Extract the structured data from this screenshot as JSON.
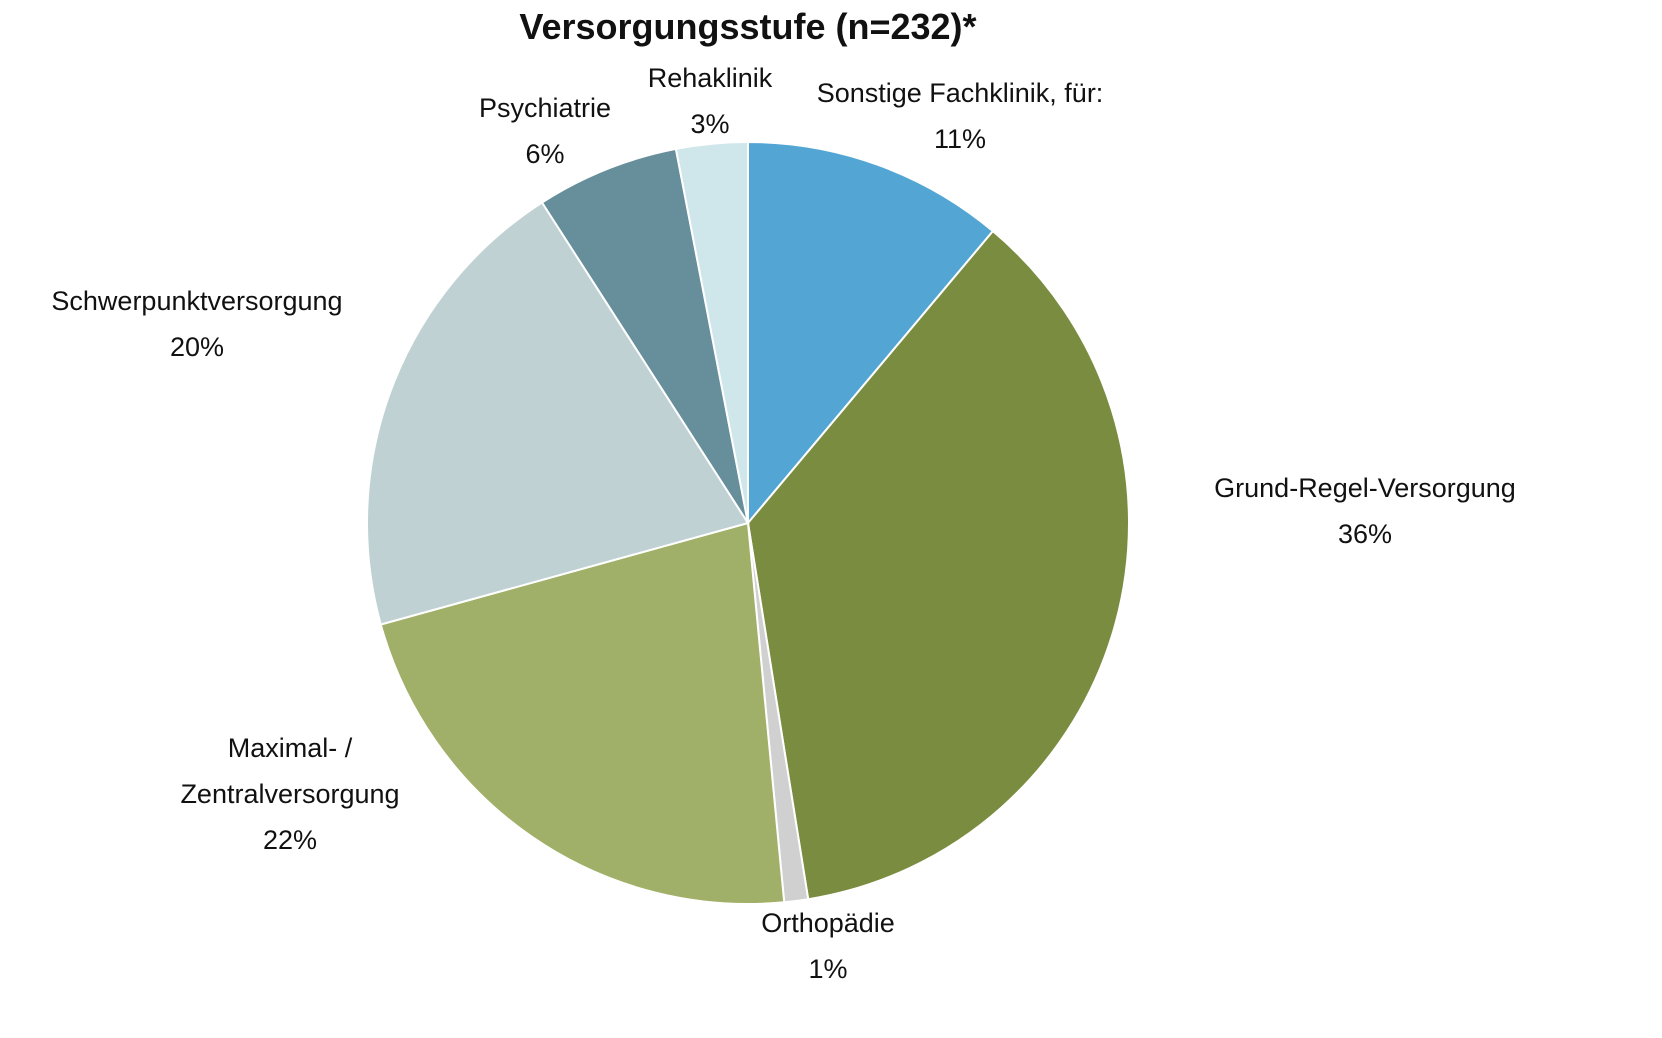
{
  "chart_data": {
    "type": "pie",
    "title": "Versorgungsstufe (n=232)*",
    "categories": [
      "Sonstige Fachklinik, für:",
      "Grund-Regel-Versorgung",
      "Orthopädie",
      "Maximal- / Zentralversorgung",
      "Schwerpunktversorgung",
      "Psychiatrie",
      "Rehaklinik"
    ],
    "values": [
      11,
      36,
      1,
      22,
      20,
      6,
      3
    ],
    "value_labels": [
      "11%",
      "36%",
      "1%",
      "22%",
      "20%",
      "6%",
      "3%"
    ],
    "colors": [
      "#53a6d4",
      "#7a8c3f",
      "#d0d0d0",
      "#a0b068",
      "#bfd1d3",
      "#668e9b",
      "#cfe6ea"
    ]
  }
}
